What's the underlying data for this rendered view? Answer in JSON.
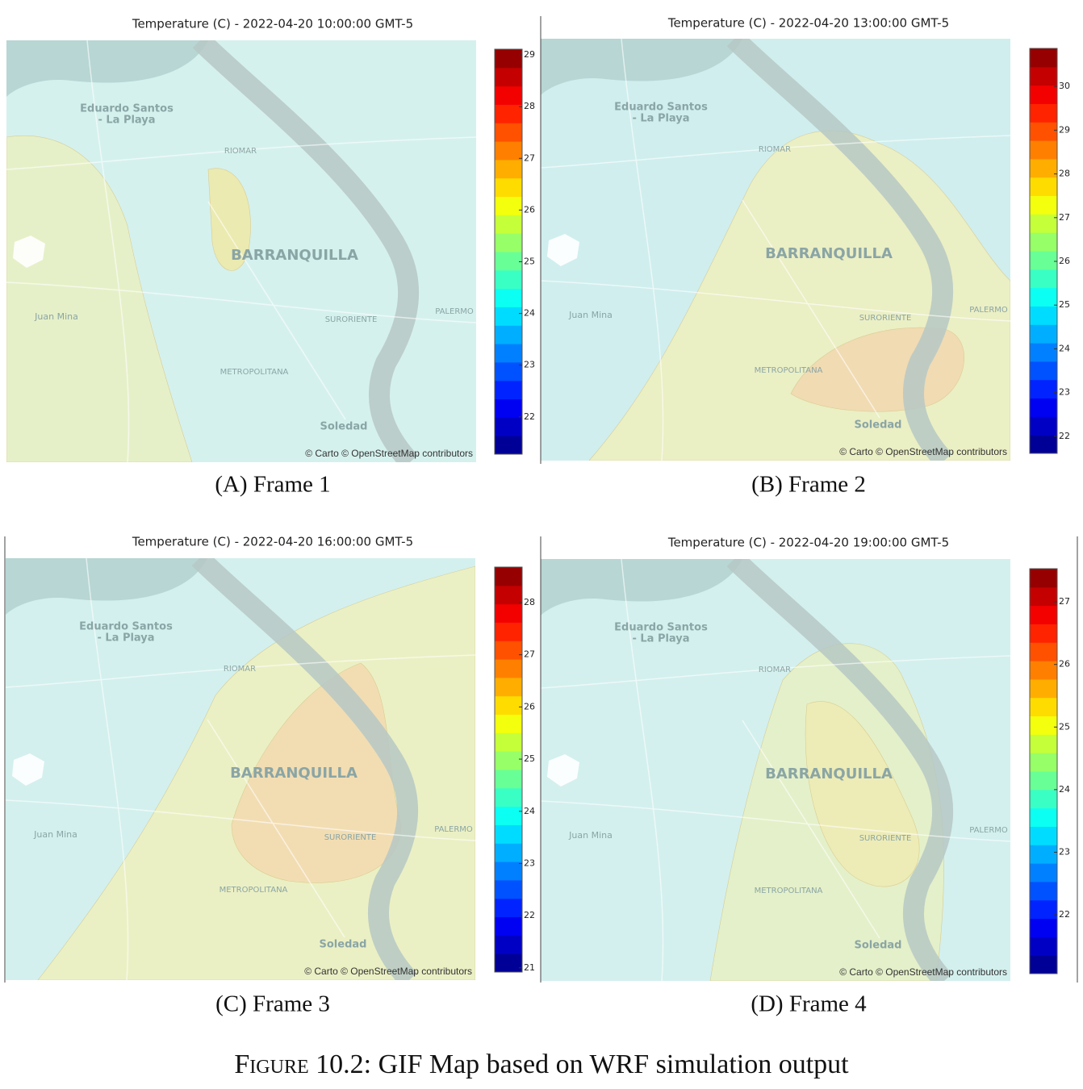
{
  "panels": [
    {
      "title": "Temperature (C) - 2022-04-20 10:00:00 GMT-5",
      "subcaption": "(A) Frame 1",
      "colorbar": {
        "clim": [
          21.28,
          29.11
        ],
        "ticks": [
          22,
          23,
          24,
          25,
          26,
          27,
          28,
          29
        ]
      }
    },
    {
      "title": "Temperature (C) - 2022-04-20 13:00:00 GMT-5",
      "subcaption": "(B) Frame 2",
      "colorbar": {
        "clim": [
          21.61,
          30.87
        ],
        "ticks": [
          22,
          23,
          24,
          25,
          26,
          27,
          28,
          29,
          30
        ]
      }
    },
    {
      "title": "Temperature (C) - 2022-04-20 16:00:00 GMT-5",
      "subcaption": "(C) Frame 3",
      "colorbar": {
        "clim": [
          20.92,
          28.68
        ],
        "ticks": [
          21,
          22,
          23,
          24,
          25,
          26,
          27,
          28
        ]
      }
    },
    {
      "title": "Temperature (C) - 2022-04-20 19:00:00 GMT-5",
      "subcaption": "(D) Frame 4",
      "colorbar": {
        "clim": [
          21.06,
          27.53
        ],
        "ticks": [
          22,
          23,
          24,
          25,
          26,
          27
        ]
      }
    }
  ],
  "map_labels": {
    "eduardo": "Eduardo Santos",
    "playa": "- La Playa",
    "riomar": "RIOMAR",
    "city": "BARRANQUILLA",
    "juan_mina": "Juan Mina",
    "suroriente": "SURORIENTE",
    "palermo": "PALERMO",
    "metropolitana": "METROPOLITANA",
    "soledad": "Soledad",
    "attribution": "© Carto © OpenStreetMap contributors"
  },
  "figure_caption": {
    "label": "Figure 10.2:",
    "text": "GIF Map based on WRF simulation output"
  }
}
